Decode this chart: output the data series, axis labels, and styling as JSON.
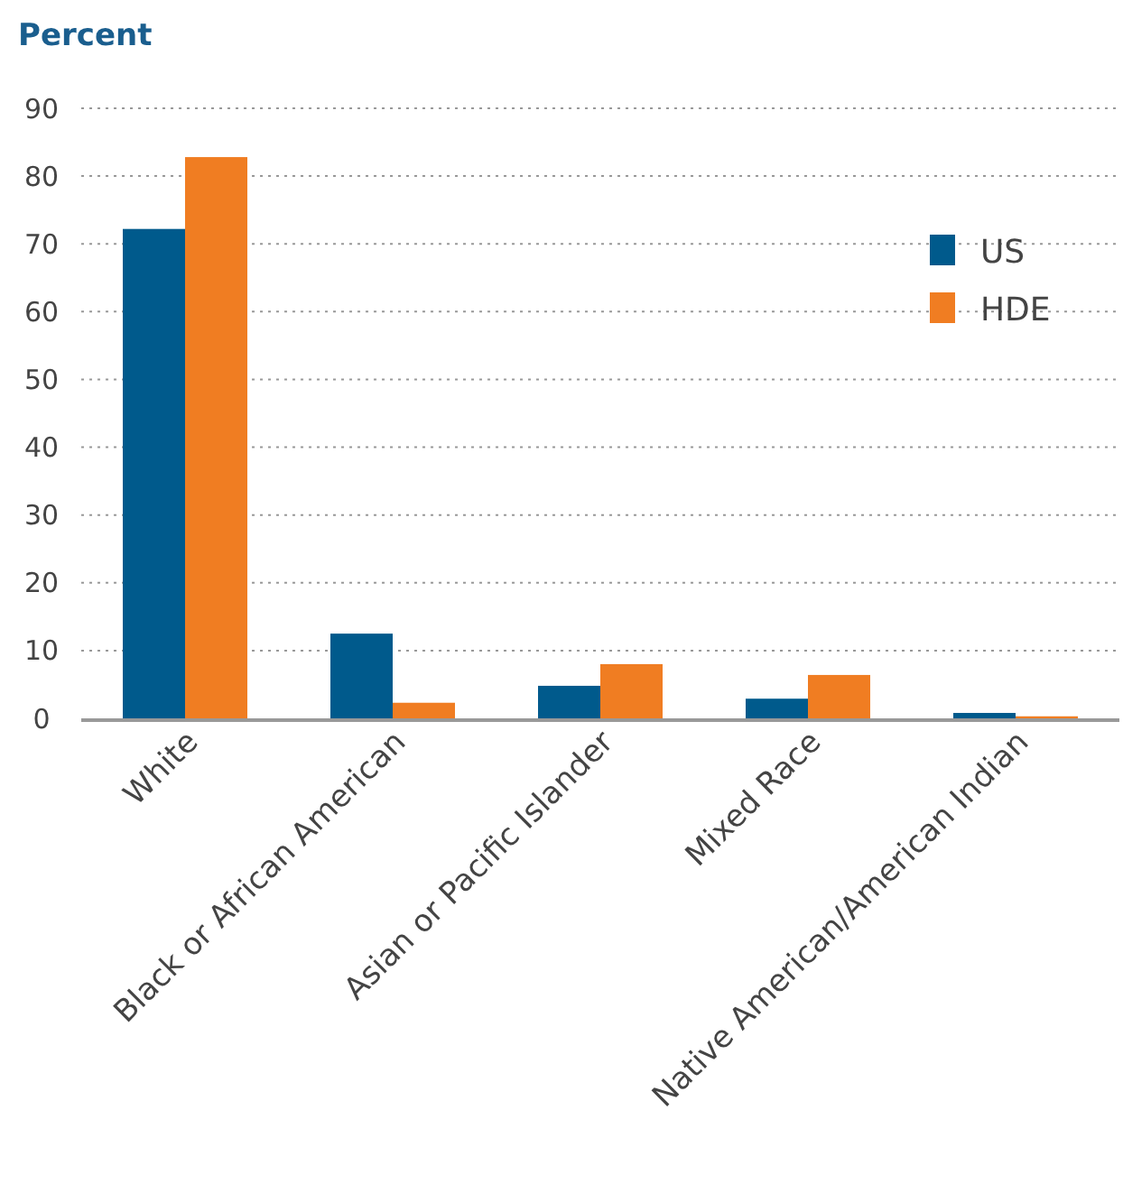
{
  "chart_data": {
    "type": "bar",
    "title": "Percent",
    "categories": [
      "White",
      "Black or African American",
      "Asian or Pacific Islander",
      "Mixed Race",
      "Native American/American Indian"
    ],
    "series": [
      {
        "name": "US",
        "color": "#005a8c",
        "values": [
          72.2,
          12.5,
          4.8,
          2.9,
          0.8
        ]
      },
      {
        "name": "HDE",
        "color": "#f07d22",
        "values": [
          82.8,
          2.3,
          8.0,
          6.4,
          0.3
        ]
      }
    ],
    "ylim": [
      0,
      90
    ],
    "yticks": [
      0,
      10,
      20,
      30,
      40,
      50,
      60,
      70,
      80,
      90
    ],
    "grid": "y",
    "legend": "top right"
  }
}
